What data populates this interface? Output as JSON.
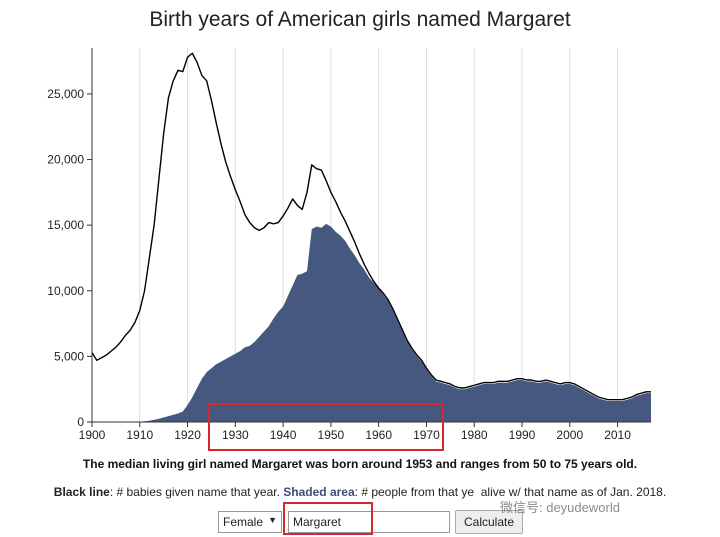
{
  "chart_data": {
    "type": "area",
    "title": "Birth years of American girls named Margaret",
    "xlim": [
      1900,
      2017
    ],
    "ylim": [
      0,
      28500
    ],
    "x_ticks": [
      1900,
      1910,
      1920,
      1930,
      1940,
      1950,
      1960,
      1970,
      1980,
      1990,
      2000,
      2010
    ],
    "y_ticks": [
      0,
      5000,
      10000,
      15000,
      20000,
      25000
    ],
    "y_tick_labels": [
      "0",
      "5,000",
      "10,000",
      "15,000",
      "20,000",
      "25,000"
    ],
    "grid": "vertical",
    "series": [
      {
        "name": "Black line",
        "style": "line",
        "color": "#000000",
        "points": [
          [
            1900,
            5300
          ],
          [
            1901,
            4700
          ],
          [
            1902,
            4900
          ],
          [
            1903,
            5100
          ],
          [
            1904,
            5400
          ],
          [
            1905,
            5700
          ],
          [
            1906,
            6100
          ],
          [
            1907,
            6600
          ],
          [
            1908,
            7000
          ],
          [
            1909,
            7600
          ],
          [
            1910,
            8500
          ],
          [
            1911,
            10000
          ],
          [
            1912,
            12500
          ],
          [
            1913,
            15000
          ],
          [
            1914,
            18500
          ],
          [
            1915,
            22000
          ],
          [
            1916,
            24700
          ],
          [
            1917,
            26000
          ],
          [
            1918,
            26800
          ],
          [
            1919,
            26700
          ],
          [
            1920,
            27800
          ],
          [
            1921,
            28100
          ],
          [
            1922,
            27400
          ],
          [
            1923,
            26400
          ],
          [
            1924,
            26000
          ],
          [
            1925,
            24500
          ],
          [
            1926,
            22800
          ],
          [
            1927,
            21200
          ],
          [
            1928,
            19800
          ],
          [
            1929,
            18700
          ],
          [
            1930,
            17700
          ],
          [
            1931,
            16800
          ],
          [
            1932,
            15800
          ],
          [
            1933,
            15200
          ],
          [
            1934,
            14800
          ],
          [
            1935,
            14600
          ],
          [
            1936,
            14800
          ],
          [
            1937,
            15200
          ],
          [
            1938,
            15100
          ],
          [
            1939,
            15200
          ],
          [
            1940,
            15700
          ],
          [
            1941,
            16300
          ],
          [
            1942,
            17000
          ],
          [
            1943,
            16500
          ],
          [
            1944,
            16200
          ],
          [
            1945,
            17500
          ],
          [
            1946,
            19600
          ],
          [
            1947,
            19300
          ],
          [
            1948,
            19200
          ],
          [
            1949,
            18400
          ],
          [
            1950,
            17500
          ],
          [
            1951,
            16800
          ],
          [
            1952,
            16000
          ],
          [
            1953,
            15300
          ],
          [
            1954,
            14500
          ],
          [
            1955,
            13700
          ],
          [
            1956,
            12800
          ],
          [
            1957,
            12000
          ],
          [
            1958,
            11300
          ],
          [
            1959,
            10700
          ],
          [
            1960,
            10200
          ],
          [
            1961,
            9800
          ],
          [
            1962,
            9300
          ],
          [
            1963,
            8600
          ],
          [
            1964,
            7800
          ],
          [
            1965,
            7000
          ],
          [
            1966,
            6200
          ],
          [
            1967,
            5600
          ],
          [
            1968,
            5100
          ],
          [
            1969,
            4700
          ],
          [
            1970,
            4100
          ],
          [
            1971,
            3600
          ],
          [
            1972,
            3200
          ],
          [
            1973,
            3100
          ],
          [
            1974,
            3000
          ],
          [
            1975,
            2900
          ],
          [
            1976,
            2700
          ],
          [
            1977,
            2600
          ],
          [
            1978,
            2600
          ],
          [
            1979,
            2700
          ],
          [
            1980,
            2800
          ],
          [
            1981,
            2900
          ],
          [
            1982,
            3000
          ],
          [
            1983,
            3000
          ],
          [
            1984,
            3000
          ],
          [
            1985,
            3100
          ],
          [
            1986,
            3100
          ],
          [
            1987,
            3100
          ],
          [
            1988,
            3200
          ],
          [
            1989,
            3300
          ],
          [
            1990,
            3300
          ],
          [
            1991,
            3200
          ],
          [
            1992,
            3200
          ],
          [
            1993,
            3100
          ],
          [
            1994,
            3100
          ],
          [
            1995,
            3200
          ],
          [
            1996,
            3100
          ],
          [
            1997,
            3000
          ],
          [
            1998,
            2900
          ],
          [
            1999,
            3000
          ],
          [
            2000,
            3000
          ],
          [
            2001,
            2900
          ],
          [
            2002,
            2700
          ],
          [
            2003,
            2500
          ],
          [
            2004,
            2300
          ],
          [
            2005,
            2100
          ],
          [
            2006,
            1900
          ],
          [
            2007,
            1800
          ],
          [
            2008,
            1700
          ],
          [
            2009,
            1700
          ],
          [
            2010,
            1700
          ],
          [
            2011,
            1700
          ],
          [
            2012,
            1800
          ],
          [
            2013,
            1900
          ],
          [
            2014,
            2100
          ],
          [
            2015,
            2200
          ],
          [
            2016,
            2300
          ],
          [
            2017,
            2300
          ]
        ]
      },
      {
        "name": "Shaded area",
        "style": "area",
        "color": "#46587f",
        "points": [
          [
            1900,
            0
          ],
          [
            1909,
            0
          ],
          [
            1910,
            20
          ],
          [
            1912,
            100
          ],
          [
            1914,
            250
          ],
          [
            1916,
            450
          ],
          [
            1918,
            650
          ],
          [
            1919,
            800
          ],
          [
            1920,
            1300
          ],
          [
            1921,
            1900
          ],
          [
            1922,
            2600
          ],
          [
            1923,
            3300
          ],
          [
            1924,
            3800
          ],
          [
            1925,
            4100
          ],
          [
            1926,
            4400
          ],
          [
            1927,
            4600
          ],
          [
            1928,
            4800
          ],
          [
            1929,
            5000
          ],
          [
            1930,
            5200
          ],
          [
            1931,
            5400
          ],
          [
            1932,
            5700
          ],
          [
            1933,
            5800
          ],
          [
            1934,
            6100
          ],
          [
            1935,
            6500
          ],
          [
            1936,
            6900
          ],
          [
            1937,
            7300
          ],
          [
            1938,
            7900
          ],
          [
            1939,
            8400
          ],
          [
            1940,
            8800
          ],
          [
            1941,
            9600
          ],
          [
            1942,
            10400
          ],
          [
            1943,
            11200
          ],
          [
            1944,
            11300
          ],
          [
            1945,
            11500
          ],
          [
            1946,
            14700
          ],
          [
            1947,
            14900
          ],
          [
            1948,
            14800
          ],
          [
            1949,
            15100
          ],
          [
            1950,
            14900
          ],
          [
            1951,
            14500
          ],
          [
            1952,
            14200
          ],
          [
            1953,
            13800
          ],
          [
            1954,
            13200
          ],
          [
            1955,
            12700
          ],
          [
            1956,
            12100
          ],
          [
            1957,
            11600
          ],
          [
            1958,
            11000
          ],
          [
            1959,
            10600
          ],
          [
            1960,
            10200
          ],
          [
            1961,
            9700
          ],
          [
            1962,
            9200
          ],
          [
            1963,
            8500
          ],
          [
            1964,
            7700
          ],
          [
            1965,
            6900
          ],
          [
            1966,
            6100
          ],
          [
            1967,
            5500
          ],
          [
            1968,
            5000
          ],
          [
            1969,
            4600
          ],
          [
            1970,
            4000
          ],
          [
            1971,
            3500
          ],
          [
            1972,
            3100
          ],
          [
            1973,
            3000
          ],
          [
            1974,
            2900
          ],
          [
            1975,
            2800
          ],
          [
            1976,
            2600
          ],
          [
            1977,
            2500
          ],
          [
            1978,
            2500
          ],
          [
            1979,
            2600
          ],
          [
            1980,
            2700
          ],
          [
            1981,
            2800
          ],
          [
            1982,
            2900
          ],
          [
            1983,
            2900
          ],
          [
            1984,
            2900
          ],
          [
            1985,
            3000
          ],
          [
            1986,
            3000
          ],
          [
            1987,
            3000
          ],
          [
            1988,
            3100
          ],
          [
            1989,
            3200
          ],
          [
            1990,
            3200
          ],
          [
            1991,
            3100
          ],
          [
            1992,
            3100
          ],
          [
            1993,
            3000
          ],
          [
            1994,
            3000
          ],
          [
            1995,
            3100
          ],
          [
            1996,
            3000
          ],
          [
            1997,
            2900
          ],
          [
            1998,
            2800
          ],
          [
            1999,
            2900
          ],
          [
            2000,
            2900
          ],
          [
            2001,
            2800
          ],
          [
            2002,
            2600
          ],
          [
            2003,
            2400
          ],
          [
            2004,
            2200
          ],
          [
            2005,
            2000
          ],
          [
            2006,
            1800
          ],
          [
            2007,
            1700
          ],
          [
            2008,
            1600
          ],
          [
            2009,
            1600
          ],
          [
            2010,
            1600
          ],
          [
            2011,
            1600
          ],
          [
            2012,
            1700
          ],
          [
            2013,
            1800
          ],
          [
            2014,
            2000
          ],
          [
            2015,
            2100
          ],
          [
            2016,
            2200
          ],
          [
            2017,
            2200
          ]
        ]
      }
    ]
  },
  "summary": "The median living girl named Margaret was born around 1953 and ranges from 50 to 75 years old.",
  "legend": {
    "black_line_label": "Black line",
    "black_line_desc": ": # babies given name that year. ",
    "shaded_label": "Shaded area",
    "shaded_desc": ": # people from that ye",
    "shaded_desc_2": "alive w/ that name as of Jan. 2018."
  },
  "controls": {
    "gender": "Female",
    "name_value": "Margaret",
    "calculate_label": "Calculate"
  },
  "watermark": "微信号: deyudeworld",
  "colors": {
    "highlight": "#d62a2a",
    "area": "#46587f",
    "line": "#000000"
  }
}
